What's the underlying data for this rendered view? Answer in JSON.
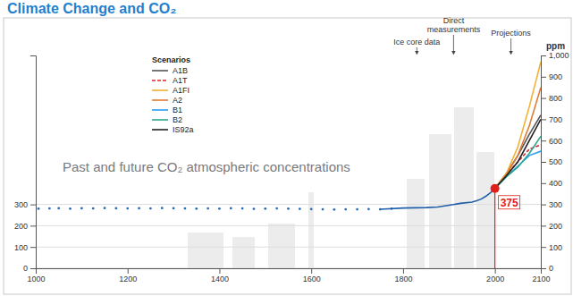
{
  "chart_data": {
    "type": "line",
    "title": "Climate Change and CO₂",
    "subtitle": "Past and future CO₂ atmospheric concentrations",
    "annotations": [
      {
        "text": "Ice core data",
        "x": 1830
      },
      {
        "text": "Direct measurements",
        "x": 1910
      },
      {
        "text": "Projections",
        "x": 2035
      }
    ],
    "legend_title": "Scenarios",
    "legend": "top-left",
    "grid": true,
    "y2_label": "ppm",
    "xlim": [
      1000,
      2100
    ],
    "xticks": [
      1000,
      1200,
      1400,
      1600,
      1800,
      2000,
      2100
    ],
    "ylim": [
      0,
      1000
    ],
    "yticks": [
      0,
      100,
      200,
      300
    ],
    "y2lim": [
      0,
      1000
    ],
    "y2ticks": [
      0,
      100,
      200,
      300,
      400,
      500,
      600,
      700,
      800,
      900,
      {
        "value": 1000,
        "label": "1,000"
      }
    ],
    "highlight": {
      "x": 2000,
      "value": 375,
      "color": "#e0201b"
    },
    "series": [
      {
        "type": "scatter",
        "marker": "circle",
        "color": "#2a6cb3",
        "x": [
          1006,
          1030,
          1050,
          1075,
          1100,
          1125,
          1150,
          1175,
          1200,
          1225,
          1250,
          1275,
          1300,
          1325,
          1350,
          1375,
          1400,
          1425,
          1450,
          1475,
          1500,
          1525,
          1550,
          1575,
          1600,
          1625,
          1650,
          1675,
          1700,
          1725,
          1750,
          1775
        ],
        "values": [
          280,
          281,
          282,
          280,
          282,
          281,
          283,
          282,
          281,
          282,
          281,
          283,
          282,
          281,
          280,
          281,
          280,
          282,
          281,
          279,
          280,
          281,
          280,
          279,
          278,
          277,
          276,
          277,
          277,
          278,
          277,
          280
        ]
      },
      {
        "type": "line",
        "color": "#1f5ea8",
        "x": [
          1750,
          1800,
          1850,
          1875,
          1900,
          1925,
          1950,
          1960,
          1970,
          1980,
          1990,
          2000
        ],
        "values": [
          277,
          283,
          285,
          288,
          296,
          305,
          311,
          317,
          325,
          338,
          354,
          375
        ]
      },
      {
        "name": "A1B",
        "type": "line",
        "color": "#555555",
        "line_style": "solid",
        "x": [
          2000,
          2025,
          2050,
          2075,
          2100
        ],
        "values": [
          375,
          445,
          530,
          630,
          720
        ]
      },
      {
        "name": "A1T",
        "type": "line",
        "color": "#d62728",
        "line_style": "dashed",
        "x": [
          2000,
          2025,
          2050,
          2075,
          2100
        ],
        "values": [
          375,
          440,
          500,
          560,
          580
        ]
      },
      {
        "name": "A1FI",
        "type": "line",
        "color": "#f2b134",
        "line_style": "solid",
        "x": [
          2000,
          2025,
          2050,
          2075,
          2100
        ],
        "values": [
          375,
          445,
          570,
          760,
          970
        ]
      },
      {
        "name": "A2",
        "type": "line",
        "color": "#e07b39",
        "line_style": "solid",
        "x": [
          2000,
          2025,
          2050,
          2075,
          2100
        ],
        "values": [
          375,
          440,
          530,
          670,
          850
        ]
      },
      {
        "name": "B1",
        "type": "line",
        "color": "#2a9df4",
        "line_style": "solid",
        "x": [
          2000,
          2025,
          2050,
          2075,
          2100
        ],
        "values": [
          375,
          430,
          480,
          530,
          550
        ]
      },
      {
        "name": "B2",
        "type": "line",
        "color": "#2ca58d",
        "line_style": "solid",
        "x": [
          2000,
          2025,
          2050,
          2075,
          2100
        ],
        "values": [
          375,
          430,
          475,
          540,
          620
        ]
      },
      {
        "name": "IS92a",
        "type": "line",
        "color": "#222222",
        "line_style": "solid",
        "x": [
          2000,
          2025,
          2050,
          2075,
          2100
        ],
        "values": [
          375,
          435,
          500,
          600,
          700
        ]
      }
    ]
  }
}
